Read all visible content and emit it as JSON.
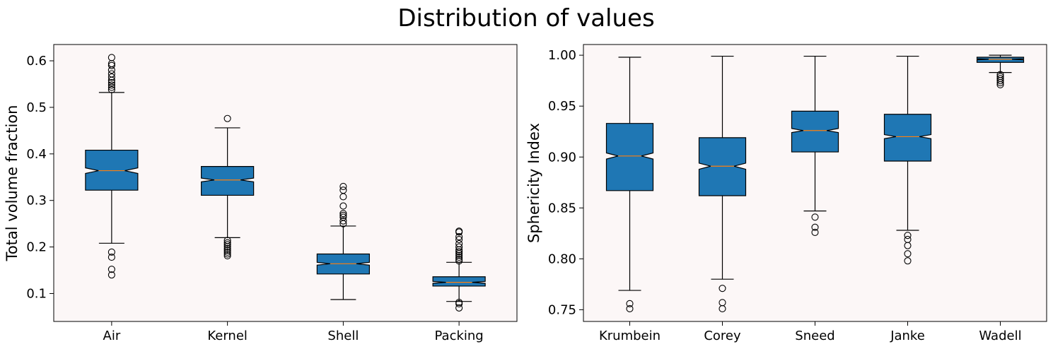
{
  "figure": {
    "title": "Distribution of values"
  },
  "colors": {
    "box_fill": "#1f77b4",
    "axes_bg": "#fcf7f7",
    "median": "#ff7f0e",
    "outline": "#000000"
  },
  "chart_data": [
    {
      "type": "boxplot",
      "notched": true,
      "xlabel": "",
      "ylabel": "Total volume fraction",
      "ylim": [
        0.04,
        0.635
      ],
      "yticks": [
        0.1,
        0.2,
        0.3,
        0.4,
        0.5,
        0.6
      ],
      "ytick_labels": [
        "0.1",
        "0.2",
        "0.3",
        "0.4",
        "0.5",
        "0.6"
      ],
      "categories": [
        "Air",
        "Kernel",
        "Shell",
        "Packing"
      ],
      "boxes": [
        {
          "name": "Air",
          "whisker_low": 0.208,
          "q1": 0.322,
          "median": 0.364,
          "q3": 0.408,
          "whisker_high": 0.532,
          "notch_low": 0.358,
          "notch_high": 0.37,
          "outliers": [
            0.14,
            0.152,
            0.178,
            0.189,
            0.538,
            0.543,
            0.548,
            0.553,
            0.558,
            0.565,
            0.572,
            0.58,
            0.59,
            0.594,
            0.607
          ]
        },
        {
          "name": "Kernel",
          "whisker_low": 0.22,
          "q1": 0.311,
          "median": 0.344,
          "q3": 0.373,
          "whisker_high": 0.456,
          "notch_low": 0.34,
          "notch_high": 0.348,
          "outliers": [
            0.181,
            0.185,
            0.189,
            0.193,
            0.197,
            0.201,
            0.205,
            0.209,
            0.214,
            0.476
          ]
        },
        {
          "name": "Shell",
          "whisker_low": 0.087,
          "q1": 0.142,
          "median": 0.164,
          "q3": 0.185,
          "whisker_high": 0.245,
          "notch_low": 0.161,
          "notch_high": 0.167,
          "outliers": [
            0.25,
            0.256,
            0.264,
            0.268,
            0.272,
            0.288,
            0.308,
            0.322,
            0.33
          ]
        },
        {
          "name": "Packing",
          "whisker_low": 0.083,
          "q1": 0.116,
          "median": 0.124,
          "q3": 0.136,
          "whisker_high": 0.167,
          "notch_low": 0.122,
          "notch_high": 0.126,
          "outliers": [
            0.069,
            0.078,
            0.081,
            0.17,
            0.174,
            0.178,
            0.182,
            0.186,
            0.19,
            0.194,
            0.2,
            0.207,
            0.216,
            0.222,
            0.232,
            0.234
          ]
        }
      ]
    },
    {
      "type": "boxplot",
      "notched": true,
      "xlabel": "",
      "ylabel": "Sphericity Index",
      "ylim": [
        0.7385,
        1.0105
      ],
      "yticks": [
        0.75,
        0.8,
        0.85,
        0.9,
        0.95,
        1.0
      ],
      "ytick_labels": [
        "0.75",
        "0.80",
        "0.85",
        "0.90",
        "0.95",
        "1.00"
      ],
      "categories": [
        "Krumbein",
        "Corey",
        "Sneed",
        "Janke",
        "Wadell"
      ],
      "boxes": [
        {
          "name": "Krumbein",
          "whisker_low": 0.769,
          "q1": 0.867,
          "median": 0.901,
          "q3": 0.933,
          "whisker_high": 0.998,
          "notch_low": 0.898,
          "notch_high": 0.904,
          "outliers": [
            0.751,
            0.756
          ]
        },
        {
          "name": "Corey",
          "whisker_low": 0.78,
          "q1": 0.862,
          "median": 0.891,
          "q3": 0.919,
          "whisker_high": 0.999,
          "notch_low": 0.888,
          "notch_high": 0.894,
          "outliers": [
            0.751,
            0.757,
            0.771
          ]
        },
        {
          "name": "Sneed",
          "whisker_low": 0.847,
          "q1": 0.905,
          "median": 0.926,
          "q3": 0.945,
          "whisker_high": 0.999,
          "notch_low": 0.924,
          "notch_high": 0.928,
          "outliers": [
            0.826,
            0.831,
            0.841
          ]
        },
        {
          "name": "Janke",
          "whisker_low": 0.828,
          "q1": 0.896,
          "median": 0.92,
          "q3": 0.942,
          "whisker_high": 0.999,
          "notch_low": 0.918,
          "notch_high": 0.922,
          "outliers": [
            0.798,
            0.805,
            0.813,
            0.819,
            0.823
          ]
        },
        {
          "name": "Wadell",
          "whisker_low": 0.983,
          "q1": 0.993,
          "median": 0.996,
          "q3": 0.998,
          "whisker_high": 1.0,
          "notch_low": 0.9955,
          "notch_high": 0.9965,
          "outliers": [
            0.971,
            0.973,
            0.975,
            0.977,
            0.979,
            0.981
          ]
        }
      ]
    }
  ]
}
